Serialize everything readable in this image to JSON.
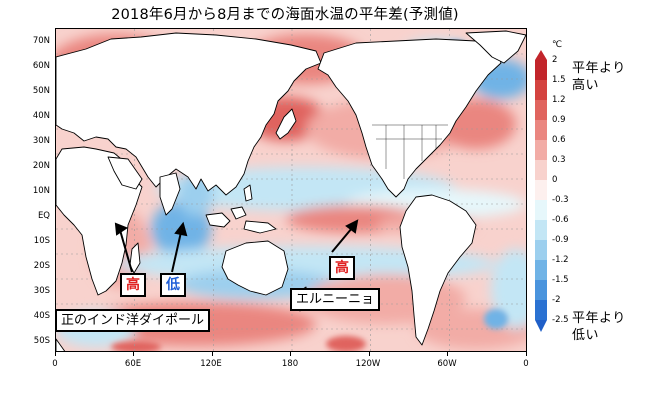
{
  "title": "2018年6月から8月までの海面水温の平年差(予測値)",
  "map": {
    "lat_labels": [
      "70N",
      "60N",
      "50N",
      "40N",
      "30N",
      "20N",
      "10N",
      "EQ",
      "10S",
      "20S",
      "30S",
      "40S",
      "50S"
    ],
    "lon_labels": [
      "0",
      "60E",
      "120E",
      "180",
      "120W",
      "60W",
      "0"
    ]
  },
  "colorbar": {
    "unit": "℃",
    "tick_labels": [
      "2",
      "1.5",
      "1.2",
      "0.9",
      "0.6",
      "0.3",
      "0",
      "-0.3",
      "-0.6",
      "-0.9",
      "-1.2",
      "-1.5",
      "-2",
      "-2.5"
    ],
    "colors": [
      "#c2252b",
      "#d4433f",
      "#e0645e",
      "#ea8680",
      "#f2aca6",
      "#f8d2cd",
      "#fdf0ee",
      "#e6f7fb",
      "#c3e6f5",
      "#9ccfee",
      "#70b3e6",
      "#4a94dd",
      "#2b72d2",
      "#1f5fc8"
    ]
  },
  "annotations": {
    "high_label": "平年より\n高い",
    "low_label": "平年より\n低い",
    "dipole_box": "正のインド洋ダイポール",
    "elnino_box": "エルニーニョ",
    "west_high": "高",
    "east_low": "低",
    "pacific_high": "高"
  },
  "colors": {
    "warm": "#f4b3ad",
    "warm_strong": "#e0645e",
    "cool": "#c3e6f5",
    "cool_strong": "#70b3e6",
    "high_text": "#e02020",
    "low_text": "#1f5fd8",
    "land": "#ffffff"
  }
}
